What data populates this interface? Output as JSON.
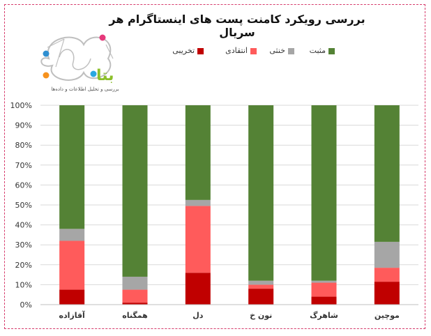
{
  "chart_data": {
    "type": "bar",
    "stacked": true,
    "title": "بررسی رویکرد کامنت پست های اینستاگرام هر سریال",
    "categories": [
      "آقازاده",
      "همگناه",
      "دل",
      "نون خ",
      "شاهرگ",
      "موچین"
    ],
    "series": [
      {
        "name": "تخریبی",
        "color": "#c00000",
        "values": [
          7.5,
          1.0,
          16.0,
          8.0,
          4.0,
          11.5
        ]
      },
      {
        "name": "انتقادی",
        "color": "#ff5b5b",
        "values": [
          24.5,
          6.5,
          33.5,
          2.0,
          7.0,
          7.0
        ]
      },
      {
        "name": "خنثی",
        "color": "#a6a6a6",
        "values": [
          6.0,
          6.5,
          3.0,
          2.0,
          1.0,
          13.0
        ]
      },
      {
        "name": "مثبت",
        "color": "#548235",
        "values": [
          62.0,
          86.0,
          47.5,
          88.0,
          88.0,
          68.5
        ]
      }
    ],
    "legend_order": [
      "مثبت",
      "خنثی",
      "انتقادی",
      "تخریبی"
    ],
    "y_ticks": [
      "0%",
      "10%",
      "20%",
      "30%",
      "40%",
      "50%",
      "60%",
      "70%",
      "80%",
      "90%",
      "100%"
    ],
    "ylim": [
      0,
      100
    ],
    "grid": true,
    "legend_position": "top"
  },
  "logo": {
    "word": "بتا",
    "tagline": "بررسی و تحلیل اطلاعات و داده‌ها",
    "dot_colors": [
      "#e6397b",
      "#2f8fd1",
      "#f6921e",
      "#29a8e0"
    ],
    "word_color": "#8cbf2b"
  }
}
